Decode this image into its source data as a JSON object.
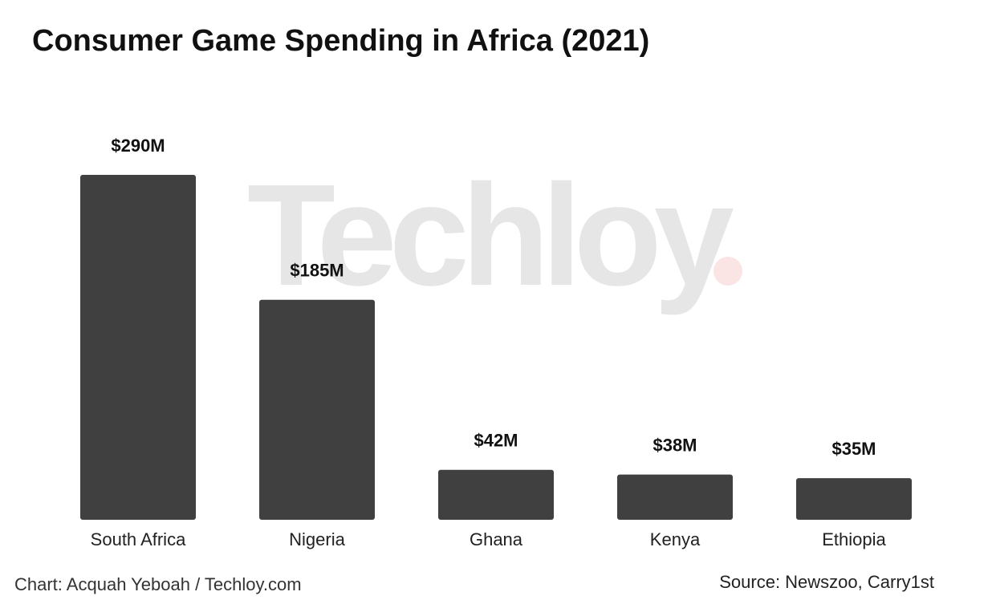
{
  "chart_data": {
    "type": "bar",
    "title": "Consumer Game Spending in Africa (2021)",
    "categories": [
      "South Africa",
      "Nigeria",
      "Ghana",
      "Kenya",
      "Ethiopia"
    ],
    "values": [
      290,
      185,
      42,
      38,
      35
    ],
    "data_labels": [
      "$290M",
      "$185M",
      "$42M",
      "$38M",
      "$35M"
    ],
    "unit": "USD millions",
    "xlabel": "",
    "ylabel": "",
    "ylim": [
      0,
      290
    ],
    "grid": false,
    "legend": "none",
    "bar_color": "#404040"
  },
  "watermark": {
    "text": "Techloy",
    "dot": ".",
    "text_color": "#e6e6e6",
    "dot_color": "#fbe4e4"
  },
  "footer": {
    "credit": "Chart: Acquah Yeboah / Techloy.com",
    "source": "Source: Newszoo, Carry1st"
  }
}
